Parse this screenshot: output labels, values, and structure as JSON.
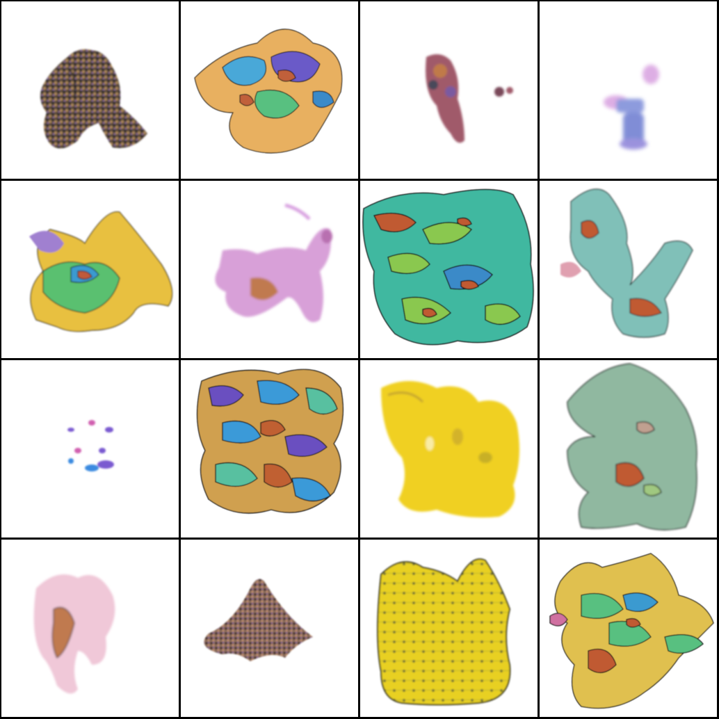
{
  "grid": {
    "rows": 4,
    "cols": 4,
    "border_color": "#000000",
    "background": "#ffffff"
  },
  "tiles": [
    {
      "id": "r1c1",
      "style": "speckled",
      "colors": [
        "#3a3a2a",
        "#7a5a3a",
        "#b08a5a",
        "#5a6a4a",
        "#8a6a8a"
      ]
    },
    {
      "id": "r1c2",
      "style": "swirl",
      "colors": [
        "#4aa8d8",
        "#e0a040",
        "#6a5ac8",
        "#c0603a",
        "#58c080"
      ]
    },
    {
      "id": "r1c3",
      "style": "sparse",
      "colors": [
        "#a04a6a",
        "#c07a4a",
        "#7a5aa0",
        "#4a4a5a"
      ]
    },
    {
      "id": "r1c4",
      "style": "soft",
      "colors": [
        "#6a8ad8",
        "#d8a0e0",
        "#9a7ad8"
      ]
    },
    {
      "id": "r2c1",
      "style": "blob",
      "colors": [
        "#e8c040",
        "#5ac070",
        "#3a9ad0",
        "#c05a3a",
        "#a080d0"
      ]
    },
    {
      "id": "r2c2",
      "style": "blob",
      "colors": [
        "#d88ac8",
        "#c8a0d8",
        "#b870b0",
        "#e0b0a0"
      ]
    },
    {
      "id": "r2c3",
      "style": "swirl",
      "colors": [
        "#40b8a0",
        "#8ac850",
        "#c05a30",
        "#3a8ac8"
      ]
    },
    {
      "id": "r2c4",
      "style": "blob",
      "colors": [
        "#70c0b8",
        "#a0c8d0",
        "#c8a0a0",
        "#c05a30"
      ]
    },
    {
      "id": "r3c1",
      "style": "sparse",
      "colors": [
        "#7a5ad0",
        "#d060b0",
        "#3a8ae0"
      ]
    },
    {
      "id": "r3c2",
      "style": "swirl",
      "colors": [
        "#3a9ad8",
        "#6a50c0",
        "#c06030",
        "#58c0a0",
        "#d0a050"
      ]
    },
    {
      "id": "r3c3",
      "style": "blob",
      "colors": [
        "#f0d020",
        "#e8c030",
        "#f8e040",
        "#c0a030"
      ]
    },
    {
      "id": "r3c4",
      "style": "blob",
      "colors": [
        "#80b8a0",
        "#a0c880",
        "#c0a090",
        "#c05a30"
      ]
    },
    {
      "id": "r4c1",
      "style": "soft",
      "colors": [
        "#f0c8d8",
        "#e8b0c8",
        "#c07a50"
      ]
    },
    {
      "id": "r4c2",
      "style": "speckled",
      "colors": [
        "#6a4a3a",
        "#a07a6a",
        "#8a6aa0",
        "#c09070"
      ]
    },
    {
      "id": "r4c3",
      "style": "blob",
      "colors": [
        "#e8d020",
        "#d0c030",
        "#a0a040",
        "#f0e050"
      ]
    },
    {
      "id": "r4c4",
      "style": "swirl",
      "colors": [
        "#e0c050",
        "#58c080",
        "#3a9ad0",
        "#c05a30",
        "#d070a0"
      ]
    }
  ]
}
